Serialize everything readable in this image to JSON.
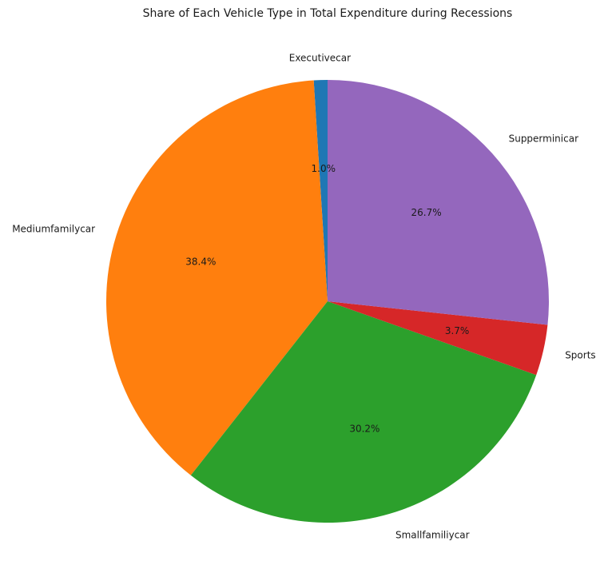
{
  "chart_data": {
    "type": "pie",
    "title": "Share of Each Vehicle Type in Total Expenditure during Recessions",
    "slices": [
      {
        "label": "Executivecar",
        "value": 1.0,
        "pct_label": "1.0%",
        "color": "#1f77b4"
      },
      {
        "label": "Mediumfamilycar",
        "value": 38.4,
        "pct_label": "38.4%",
        "color": "#ff7f0e"
      },
      {
        "label": "Smallfamiliycar",
        "value": 30.2,
        "pct_label": "30.2%",
        "color": "#2ca02c"
      },
      {
        "label": "Sports",
        "value": 3.7,
        "pct_label": "3.7%",
        "color": "#d62728"
      },
      {
        "label": "Supperminicar",
        "value": 26.7,
        "pct_label": "26.7%",
        "color": "#9467bd"
      }
    ],
    "start_angle_deg": 90,
    "direction": "counterclockwise"
  }
}
